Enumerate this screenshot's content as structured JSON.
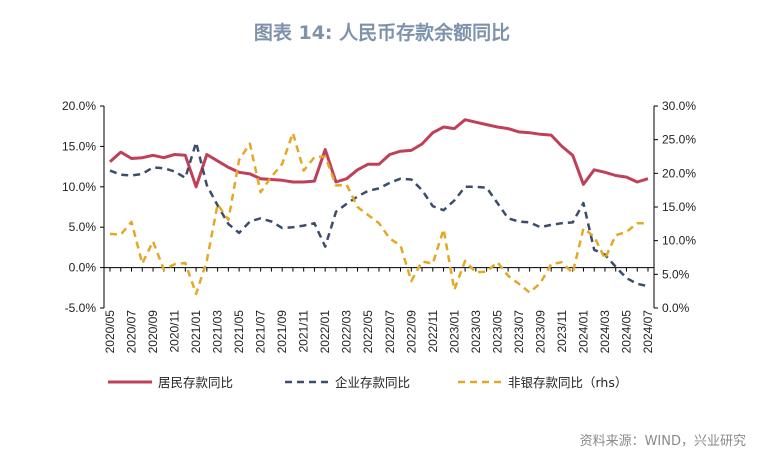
{
  "title": "图表 14: 人民币存款余额同比",
  "source": "资料来源：WIND，兴业研究",
  "chart_data": {
    "type": "line",
    "x": [
      "2020/05",
      "2020/06",
      "2020/07",
      "2020/08",
      "2020/09",
      "2020/10",
      "2020/11",
      "2020/12",
      "2021/01",
      "2021/02",
      "2021/03",
      "2021/04",
      "2021/05",
      "2021/06",
      "2021/07",
      "2021/08",
      "2021/09",
      "2021/10",
      "2021/11",
      "2021/12",
      "2022/01",
      "2022/02",
      "2022/03",
      "2022/04",
      "2022/05",
      "2022/06",
      "2022/07",
      "2022/08",
      "2022/09",
      "2022/10",
      "2022/11",
      "2022/12",
      "2023/01",
      "2023/02",
      "2023/03",
      "2023/04",
      "2023/05",
      "2023/06",
      "2023/07",
      "2023/08",
      "2023/09",
      "2023/10",
      "2023/11",
      "2023/12",
      "2024/01",
      "2024/02",
      "2024/03",
      "2024/04",
      "2024/05",
      "2024/06",
      "2024/07"
    ],
    "x_tick_labels": [
      "2020/05",
      "2020/07",
      "2020/09",
      "2020/11",
      "2021/01",
      "2021/03",
      "2021/05",
      "2021/07",
      "2021/09",
      "2021/11",
      "2022/01",
      "2022/03",
      "2022/05",
      "2022/07",
      "2022/09",
      "2022/11",
      "2023/01",
      "2023/03",
      "2023/05",
      "2023/07",
      "2023/09",
      "2023/11",
      "2024/01",
      "2024/03",
      "2024/05",
      "2024/07"
    ],
    "y_left": {
      "lim": [
        -5,
        20
      ],
      "ticks": [
        "-5.0%",
        "0.0%",
        "5.0%",
        "10.0%",
        "15.0%",
        "20.0%"
      ]
    },
    "y_right": {
      "lim": [
        0,
        30
      ],
      "ticks": [
        "0.0%",
        "5.0%",
        "10.0%",
        "15.0%",
        "20.0%",
        "25.0%",
        "30.0%"
      ]
    },
    "series": [
      {
        "name": "居民存款同比",
        "axis": "left",
        "color": "#c0405a",
        "style": "solid",
        "values": [
          13.1,
          14.3,
          13.5,
          13.6,
          13.9,
          13.6,
          14.0,
          13.9,
          10.0,
          14.0,
          13.2,
          12.4,
          11.8,
          11.6,
          11.0,
          10.9,
          10.8,
          10.6,
          10.6,
          10.7,
          14.6,
          10.6,
          11.0,
          12.1,
          12.8,
          12.8,
          14.0,
          14.4,
          14.5,
          15.3,
          16.7,
          17.4,
          17.2,
          18.3,
          18.0,
          17.7,
          17.4,
          17.2,
          16.8,
          16.7,
          16.5,
          16.4,
          15.0,
          13.9,
          10.3,
          12.1,
          11.8,
          11.4,
          11.2,
          10.6,
          11.0
        ]
      },
      {
        "name": "企业存款同比",
        "axis": "left",
        "color": "#3c4d6b",
        "style": "dashed",
        "values": [
          12.0,
          11.5,
          11.4,
          11.6,
          12.4,
          12.3,
          11.9,
          11.1,
          15.5,
          10.2,
          7.7,
          5.4,
          4.3,
          5.7,
          6.1,
          5.7,
          4.9,
          5.0,
          5.2,
          5.5,
          2.6,
          6.9,
          7.9,
          8.8,
          9.5,
          9.8,
          10.5,
          11.0,
          10.9,
          9.6,
          7.6,
          7.1,
          8.3,
          10.0,
          10.0,
          9.9,
          8.0,
          6.1,
          5.7,
          5.6,
          5.0,
          5.3,
          5.5,
          5.6,
          8.0,
          2.2,
          1.6,
          0.1,
          -1.3,
          -2.0,
          -2.3
        ]
      },
      {
        "name": "非银存款同比（rhs）",
        "axis": "right",
        "color": "#e3a826",
        "style": "dashed",
        "values": [
          11.0,
          10.9,
          12.8,
          6.6,
          9.9,
          5.7,
          6.5,
          6.7,
          2.1,
          7.0,
          15.4,
          13.1,
          22.0,
          24.4,
          17.2,
          19.5,
          21.4,
          26.0,
          20.4,
          22.4,
          22.5,
          18.2,
          18.3,
          15.0,
          13.8,
          12.6,
          10.3,
          9.3,
          4.0,
          6.9,
          6.6,
          11.7,
          2.7,
          7.0,
          5.3,
          5.4,
          6.8,
          4.8,
          3.6,
          2.3,
          3.7,
          6.5,
          6.8,
          5.2,
          11.8,
          10.6,
          7.3,
          10.8,
          11.3,
          12.6,
          12.6
        ]
      }
    ],
    "legend_position": "bottom"
  }
}
